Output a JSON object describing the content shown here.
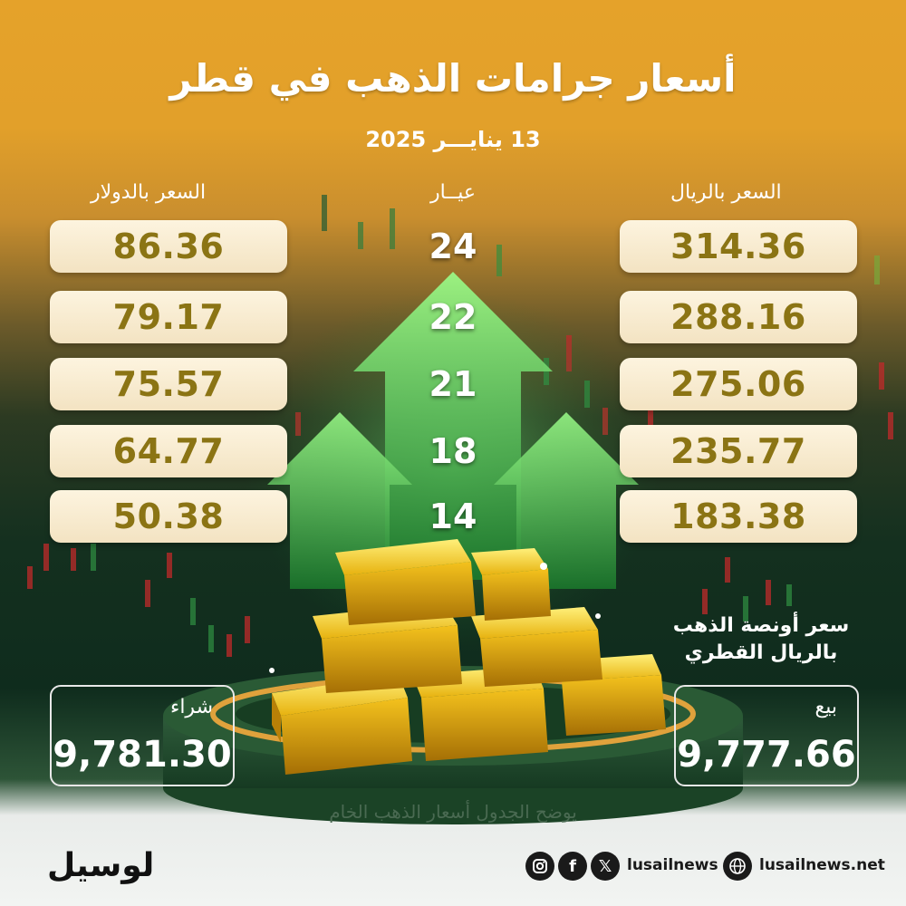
{
  "header": {
    "title": "أسعار جرامات الذهب في قطر",
    "date": "13 ينايـــر 2025"
  },
  "columns": {
    "usd_label": "السعر بالدولار",
    "karat_label": "عيــار",
    "qar_label": "السعر بالريال"
  },
  "prices": [
    {
      "karat": "24",
      "usd": "86.36",
      "qar": "314.36"
    },
    {
      "karat": "22",
      "usd": "79.17",
      "qar": "288.16"
    },
    {
      "karat": "21",
      "usd": "75.57",
      "qar": "275.06"
    },
    {
      "karat": "18",
      "usd": "64.77",
      "qar": "235.77"
    },
    {
      "karat": "14",
      "usd": "50.38",
      "qar": "183.38"
    }
  ],
  "ounce": {
    "title_line1": "سعر أونصة الذهب",
    "title_line2": "بالريال القطري",
    "buy_label": "شراء",
    "buy_value": "9,781.30",
    "sell_label": "بيع",
    "sell_value": "9,777.66"
  },
  "footnote": "يوضح الجدول أسعار  الذهب الخام",
  "footer": {
    "logo": "لوسيل",
    "social_handle": "lusailnews",
    "website": "lusailnews.net",
    "icons": [
      "instagram-icon",
      "facebook-icon",
      "x-icon",
      "globe-icon"
    ]
  },
  "colors": {
    "orange": "#e5a22a",
    "dark_green": "#0f2c1d",
    "pill": "#fdf4df",
    "price_text": "#8b7414",
    "arrow_green": "#3fbf4a"
  }
}
